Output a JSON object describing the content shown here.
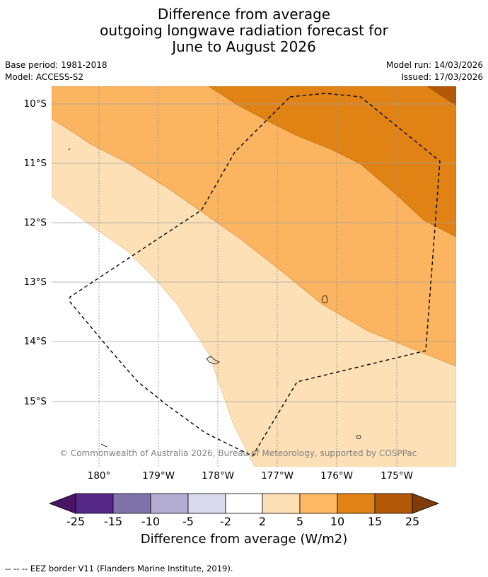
{
  "title": {
    "line1": "Difference from average",
    "line2": "outgoing longwave radiation forecast for",
    "line3": "June to August 2026"
  },
  "meta": {
    "base_period": "Base period: 1981-2018",
    "model": "Model: ACCESS-S2",
    "model_run": "Model run: 14/03/2026",
    "issued": "Issued: 17/03/2026"
  },
  "map": {
    "lat_labels": [
      "10°S",
      "11°S",
      "12°S",
      "13°S",
      "14°S",
      "15°S"
    ],
    "lon_labels": [
      "180°",
      "179°W",
      "178°W",
      "177°W",
      "176°W",
      "175°W"
    ],
    "copyright": "© Commonwealth of Australia 2026, Bureau of Meteorology, supported by COSPPac",
    "colors": {
      "band_2_5": "#fde0b6",
      "band_5_10": "#fbb45f",
      "band_10_15": "#e08214",
      "band_15_25": "#b35806",
      "neutral": "#ffffff"
    }
  },
  "colorbar": {
    "ticks": [
      "-25",
      "-15",
      "-10",
      "-5",
      "-2",
      "2",
      "5",
      "10",
      "15",
      "25"
    ],
    "colors": [
      "#4a1465",
      "#542788",
      "#8073ac",
      "#b2abd2",
      "#d8daeb",
      "#ffffff",
      "#fee0b6",
      "#fdb863",
      "#e08214",
      "#b35806",
      "#7f3b08"
    ],
    "label": "Difference from average (W/m2)"
  },
  "footnote": "-- -- -- EEZ border V11 (Flanders Marine Institute, 2019)."
}
